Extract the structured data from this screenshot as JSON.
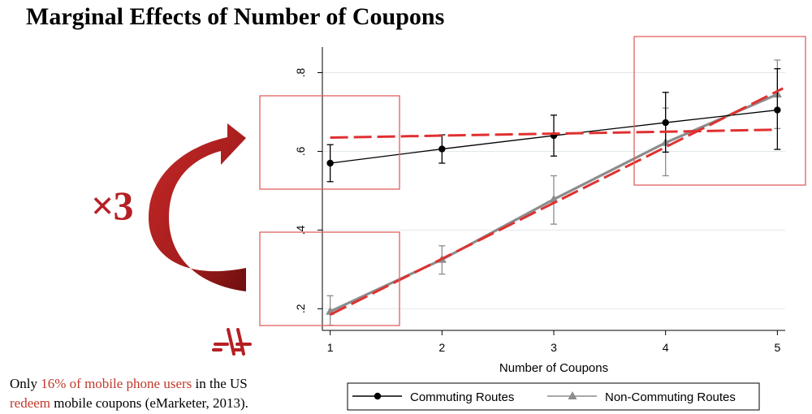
{
  "title": "Marginal Effects of Number of Coupons",
  "multiplier": "×3",
  "footnote": {
    "part1": "Only ",
    "highlight1": "16% of mobile phone users",
    "part2": " in the US ",
    "highlight2": "redeem",
    "part3": " mobile coupons (eMarketer, 2013)."
  },
  "colors": {
    "accent_red": "#c0392b",
    "arrow_red": "#a51d1d",
    "commuting": "#000000",
    "non_commuting": "#8c8c8c",
    "box_stroke": "#e06060"
  },
  "chart_data": {
    "type": "line",
    "title": "",
    "xlabel": "Number of Coupons",
    "ylabel": "",
    "x": [
      1,
      2,
      3,
      4,
      5
    ],
    "x_ticks": [
      "1",
      "2",
      "3",
      "4",
      "5"
    ],
    "y_ticks": [
      ".2",
      ".4",
      ".6",
      ".8"
    ],
    "y_tick_values": [
      0.2,
      0.4,
      0.6,
      0.8
    ],
    "xlim": [
      0.93,
      5.07
    ],
    "ylim": [
      0.145,
      0.865
    ],
    "grid": true,
    "legend_position": "bottom",
    "series": [
      {
        "name": "Commuting Routes",
        "marker": "circle",
        "color": "#000000",
        "values": [
          0.57,
          0.606,
          0.64,
          0.673,
          0.705
        ],
        "ci_low": [
          0.523,
          0.57,
          0.588,
          0.598,
          0.605
        ],
        "ci_high": [
          0.617,
          0.642,
          0.692,
          0.75,
          0.81
        ]
      },
      {
        "name": "Non-Commuting Routes",
        "marker": "triangle",
        "color": "#8c8c8c",
        "values": [
          0.193,
          0.325,
          0.478,
          0.622,
          0.745
        ],
        "ci_low": [
          0.158,
          0.288,
          0.415,
          0.538,
          0.658
        ],
        "ci_high": [
          0.233,
          0.36,
          0.538,
          0.71,
          0.832
        ]
      }
    ],
    "fit_lines": [
      {
        "series": "Commuting Routes",
        "color": "#e03030",
        "style": "dashed",
        "x": [
          1,
          5
        ],
        "values": [
          0.635,
          0.655
        ]
      },
      {
        "series": "Non-Commuting Routes",
        "color": "#e03030",
        "style": "dashed",
        "x": [
          1,
          5.05
        ],
        "values": [
          0.185,
          0.76
        ]
      }
    ]
  }
}
